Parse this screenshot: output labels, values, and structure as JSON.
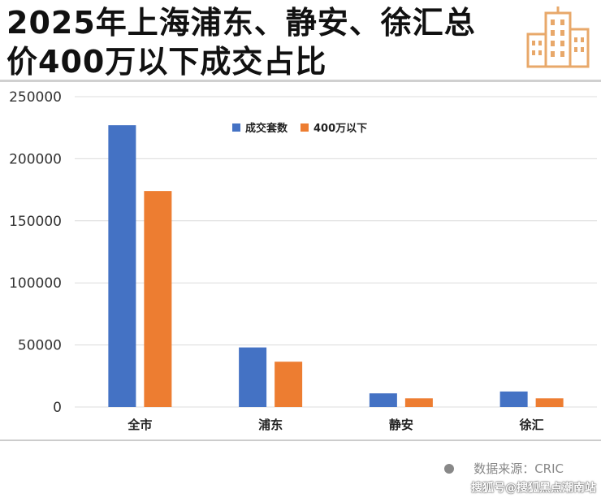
{
  "title": {
    "line1": "2025年上海浦东、静安、徐汇总",
    "line2": "价400万以下成交占比"
  },
  "logo_icon": "city-buildings-icon",
  "colors": {
    "series1": "#4472c4",
    "series2": "#ed7d31",
    "logo": "#e8a86a"
  },
  "source": "数据来源：CRIC",
  "watermark": "搜狐号@搜狐黑点潮南站",
  "chart_data": {
    "type": "bar",
    "categories": [
      "全市",
      "浦东",
      "静安",
      "徐汇"
    ],
    "series": [
      {
        "name": "成交套数",
        "values": [
          227000,
          48000,
          11000,
          12500
        ]
      },
      {
        "name": "400万以下",
        "values": [
          174000,
          36500,
          7000,
          7000
        ]
      }
    ],
    "yticks": [
      "0",
      "50000",
      "100000",
      "150000",
      "200000",
      "250000"
    ],
    "ylim": [
      0,
      250000
    ],
    "grid": true,
    "legend": "top-center"
  }
}
